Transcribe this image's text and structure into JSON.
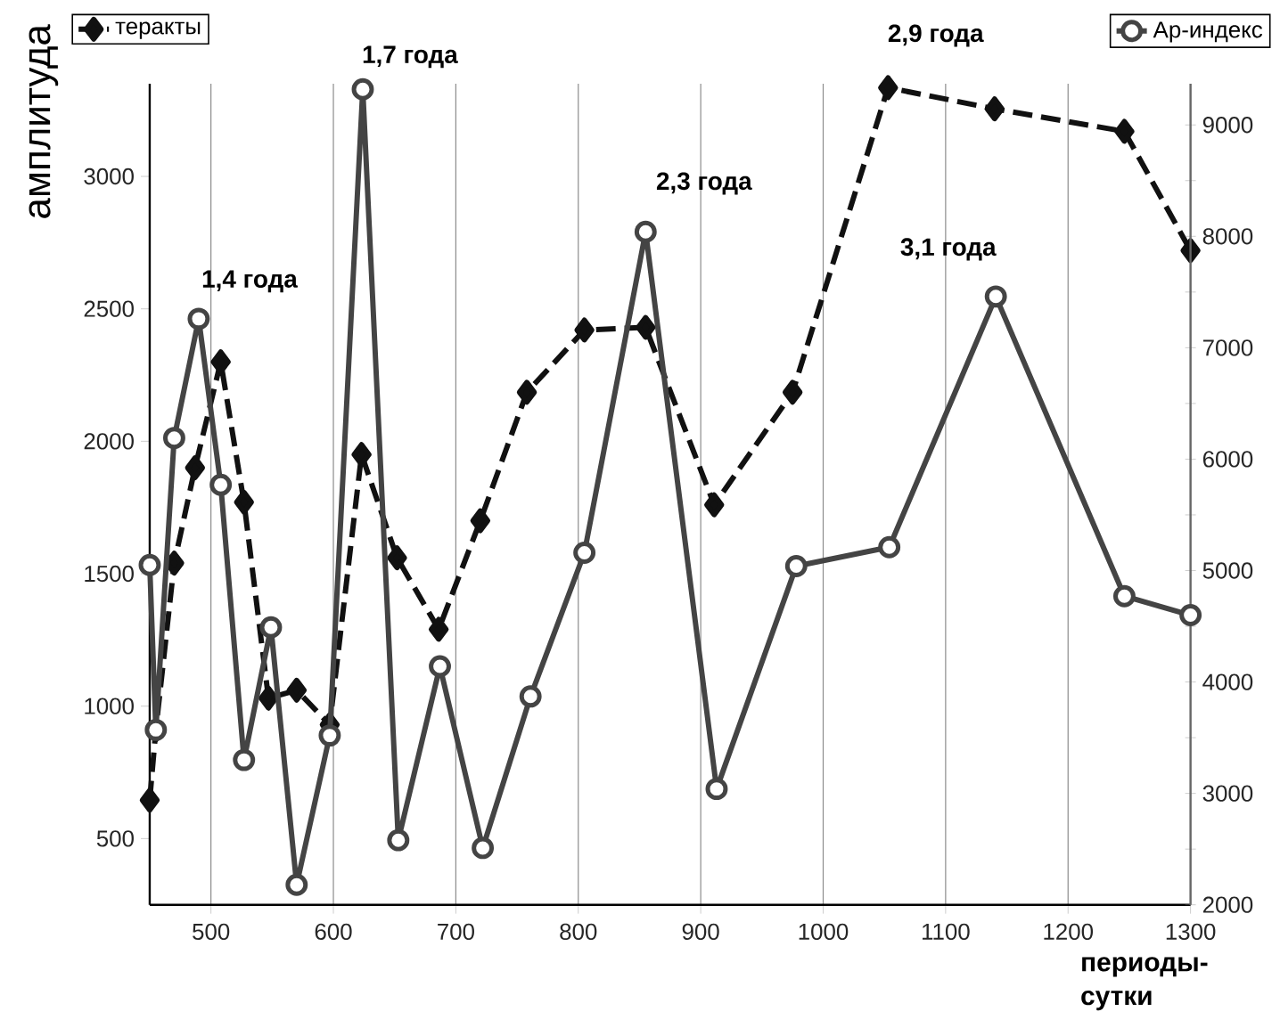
{
  "chart_data": {
    "type": "line",
    "xlabel": "периоды-сутки",
    "ylabel": "амплитуда",
    "xlim": [
      450,
      1300
    ],
    "xticks": [
      500,
      600,
      700,
      800,
      900,
      1000,
      1100,
      1200,
      1300
    ],
    "ylim": [
      250,
      3350
    ],
    "yticks": [
      500,
      1000,
      1500,
      2000,
      2500,
      3000
    ],
    "y2lim": [
      2000,
      9370
    ],
    "y2ticks": [
      2000,
      {
        "value": 2500,
        "label": null
      },
      3000,
      {
        "value": 3500,
        "label": null
      },
      4000,
      {
        "value": 4500,
        "label": null
      },
      5000,
      {
        "value": 5500,
        "label": null
      },
      6000,
      {
        "value": 6500,
        "label": null
      },
      7000,
      {
        "value": 7500,
        "label": null
      },
      8000,
      {
        "value": 8500,
        "label": null
      },
      9000
    ],
    "grid": "x",
    "legend": "top",
    "series": [
      {
        "name": "теракты",
        "color": "#111111",
        "marker": "diamond",
        "line_style": "dashed",
        "x": [
          450,
          455,
          470,
          487,
          508,
          527,
          547,
          570,
          597,
          623,
          652,
          686,
          720,
          758,
          805,
          855,
          911,
          975,
          1053,
          1140,
          1246,
          1300
        ],
        "values": [
          645,
          910,
          1540,
          1900,
          2300,
          1770,
          1030,
          1060,
          930,
          1950,
          1560,
          1290,
          1700,
          2185,
          2420,
          2430,
          1760,
          2185,
          3335,
          3255,
          3170,
          2720
        ]
      },
      {
        "name": "Ар-индекс",
        "color": "#444444",
        "marker": "circle",
        "line_style": "solid",
        "axis": "y2",
        "x": [
          450,
          455,
          470,
          490,
          508,
          527,
          549,
          570,
          597,
          624,
          653,
          687,
          722,
          761,
          805,
          855,
          913,
          978,
          1054,
          1141,
          1246,
          1300
        ],
        "values": [
          5050,
          3570,
          6190,
          7260,
          5770,
          3300,
          4490,
          2180,
          3520,
          9320,
          2580,
          4140,
          2510,
          3870,
          5160,
          8040,
          3040,
          5040,
          5210,
          7460,
          4770,
          4600
        ]
      }
    ],
    "annotations": [
      "1,4 года",
      "1,7 года",
      "2,3 года",
      "2,9 года",
      "3,1 года"
    ]
  }
}
